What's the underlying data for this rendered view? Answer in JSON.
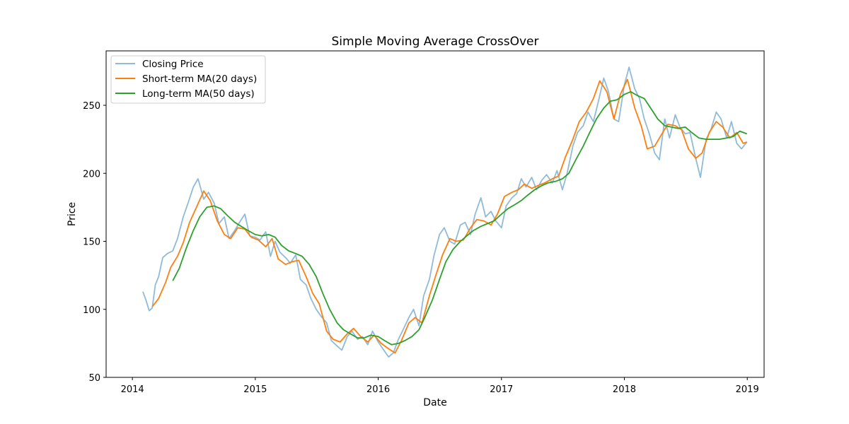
{
  "chart_data": {
    "type": "line",
    "title": "Simple Moving Average CrossOver",
    "xlabel": "Date",
    "ylabel": "Price",
    "xlim": [
      "2013-10-15",
      "2019-02-20"
    ],
    "ylim": [
      50,
      290
    ],
    "x_ticks": [
      "2014",
      "2015",
      "2016",
      "2017",
      "2018",
      "2019"
    ],
    "y_ticks": [
      50,
      100,
      150,
      200,
      250
    ],
    "grid": false,
    "legend_position": "upper left",
    "series": [
      {
        "name": "Closing Price",
        "color": "#1f77b4",
        "opacity": 0.5,
        "x": [
          "2014-02-01",
          "2014-02-10",
          "2014-02-20",
          "2014-03-01",
          "2014-03-10",
          "2014-03-20",
          "2014-04-01",
          "2014-04-15",
          "2014-05-01",
          "2014-05-15",
          "2014-06-01",
          "2014-06-15",
          "2014-07-01",
          "2014-07-15",
          "2014-08-01",
          "2014-08-15",
          "2014-09-01",
          "2014-09-15",
          "2014-10-01",
          "2014-10-15",
          "2014-11-01",
          "2014-11-15",
          "2014-12-01",
          "2014-12-15",
          "2015-01-01",
          "2015-01-15",
          "2015-02-01",
          "2015-02-15",
          "2015-03-01",
          "2015-03-15",
          "2015-04-01",
          "2015-04-15",
          "2015-05-01",
          "2015-05-15",
          "2015-06-01",
          "2015-06-15",
          "2015-07-01",
          "2015-07-15",
          "2015-08-01",
          "2015-08-15",
          "2015-09-01",
          "2015-09-15",
          "2015-10-01",
          "2015-10-15",
          "2015-11-01",
          "2015-11-15",
          "2015-12-01",
          "2015-12-15",
          "2016-01-01",
          "2016-01-15",
          "2016-02-01",
          "2016-02-15",
          "2016-03-01",
          "2016-03-15",
          "2016-04-01",
          "2016-04-15",
          "2016-05-01",
          "2016-05-15",
          "2016-06-01",
          "2016-06-15",
          "2016-07-01",
          "2016-07-15",
          "2016-08-01",
          "2016-08-15",
          "2016-09-01",
          "2016-09-15",
          "2016-10-01",
          "2016-10-15",
          "2016-11-01",
          "2016-11-15",
          "2016-12-01",
          "2016-12-15",
          "2017-01-01",
          "2017-01-15",
          "2017-02-01",
          "2017-02-15",
          "2017-03-01",
          "2017-03-15",
          "2017-04-01",
          "2017-04-15",
          "2017-05-01",
          "2017-05-15",
          "2017-06-01",
          "2017-06-15",
          "2017-07-01",
          "2017-07-15",
          "2017-08-01",
          "2017-08-15",
          "2017-09-01",
          "2017-09-15",
          "2017-10-01",
          "2017-10-15",
          "2017-11-01",
          "2017-11-15",
          "2017-12-01",
          "2017-12-15",
          "2018-01-01",
          "2018-01-15",
          "2018-02-01",
          "2018-02-15",
          "2018-03-01",
          "2018-03-15",
          "2018-04-01",
          "2018-04-15",
          "2018-05-01",
          "2018-05-15",
          "2018-06-01",
          "2018-06-15",
          "2018-07-01",
          "2018-07-15",
          "2018-08-01",
          "2018-08-15",
          "2018-09-01",
          "2018-09-15",
          "2018-10-01",
          "2018-10-15",
          "2018-11-01",
          "2018-11-15",
          "2018-12-01",
          "2018-12-15",
          "2018-12-31"
        ],
        "y": [
          113,
          107,
          99,
          101,
          118,
          124,
          138,
          141,
          143,
          152,
          168,
          178,
          190,
          196,
          181,
          186,
          178,
          163,
          168,
          152,
          158,
          164,
          170,
          154,
          153,
          151,
          157,
          139,
          150,
          142,
          138,
          134,
          140,
          122,
          118,
          108,
          100,
          95,
          90,
          77,
          73,
          70,
          80,
          84,
          78,
          80,
          74,
          84,
          76,
          71,
          65,
          68,
          78,
          85,
          94,
          100,
          88,
          110,
          122,
          140,
          155,
          160,
          150,
          148,
          162,
          164,
          155,
          170,
          182,
          168,
          172,
          165,
          160,
          176,
          182,
          185,
          196,
          190,
          197,
          188,
          195,
          199,
          193,
          202,
          188,
          200,
          220,
          230,
          235,
          245,
          238,
          252,
          270,
          260,
          240,
          238,
          265,
          278,
          262,
          255,
          240,
          230,
          215,
          210,
          240,
          226,
          243,
          234,
          229,
          230,
          211,
          197,
          225,
          232,
          245,
          240,
          226,
          238,
          222,
          218,
          223
        ]
      },
      {
        "name": "Short-term MA(20 days)",
        "color": "#ff7f0e",
        "x": [
          "2014-03-01",
          "2014-03-20",
          "2014-04-10",
          "2014-04-25",
          "2014-05-15",
          "2014-06-01",
          "2014-06-20",
          "2014-07-10",
          "2014-08-01",
          "2014-08-20",
          "2014-09-10",
          "2014-10-01",
          "2014-10-20",
          "2014-11-10",
          "2014-12-01",
          "2014-12-20",
          "2015-01-10",
          "2015-02-01",
          "2015-02-20",
          "2015-03-10",
          "2015-04-01",
          "2015-04-20",
          "2015-05-10",
          "2015-06-01",
          "2015-06-20",
          "2015-07-10",
          "2015-08-01",
          "2015-08-20",
          "2015-09-10",
          "2015-10-01",
          "2015-10-20",
          "2015-11-10",
          "2015-12-01",
          "2015-12-20",
          "2016-01-10",
          "2016-02-01",
          "2016-02-20",
          "2016-03-10",
          "2016-04-01",
          "2016-04-20",
          "2016-05-10",
          "2016-06-01",
          "2016-06-20",
          "2016-07-10",
          "2016-08-01",
          "2016-08-20",
          "2016-09-10",
          "2016-10-01",
          "2016-10-20",
          "2016-11-10",
          "2016-12-01",
          "2016-12-20",
          "2017-01-10",
          "2017-02-01",
          "2017-02-20",
          "2017-03-10",
          "2017-04-01",
          "2017-04-20",
          "2017-05-10",
          "2017-06-01",
          "2017-06-20",
          "2017-07-10",
          "2017-08-01",
          "2017-08-20",
          "2017-09-10",
          "2017-10-01",
          "2017-10-20",
          "2017-11-10",
          "2017-12-01",
          "2017-12-20",
          "2018-01-10",
          "2018-02-01",
          "2018-02-20",
          "2018-03-10",
          "2018-04-01",
          "2018-04-20",
          "2018-05-10",
          "2018-06-01",
          "2018-06-20",
          "2018-07-10",
          "2018-08-01",
          "2018-08-20",
          "2018-09-10",
          "2018-10-01",
          "2018-10-20",
          "2018-11-10",
          "2018-12-01",
          "2018-12-20",
          "2018-12-31"
        ],
        "y": [
          102,
          108,
          120,
          131,
          139,
          149,
          164,
          175,
          187,
          180,
          165,
          155,
          152,
          160,
          159,
          153,
          151,
          146,
          152,
          137,
          133,
          135,
          136,
          124,
          112,
          104,
          84,
          78,
          76,
          82,
          86,
          80,
          76,
          81,
          75,
          71,
          68,
          77,
          90,
          94,
          90,
          110,
          125,
          140,
          152,
          150,
          151,
          160,
          166,
          165,
          162,
          170,
          183,
          186,
          188,
          192,
          189,
          191,
          193,
          196,
          198,
          212,
          225,
          238,
          245,
          255,
          268,
          260,
          240,
          258,
          269,
          248,
          235,
          218,
          220,
          228,
          236,
          235,
          232,
          218,
          211,
          215,
          230,
          238,
          234,
          226,
          230,
          222,
          223
        ]
      },
      {
        "name": "Long-term MA(50 days)",
        "color": "#2ca02c",
        "x": [
          "2014-05-01",
          "2014-05-20",
          "2014-06-10",
          "2014-07-01",
          "2014-07-20",
          "2014-08-10",
          "2014-09-01",
          "2014-09-20",
          "2014-10-10",
          "2014-11-01",
          "2014-11-20",
          "2014-12-10",
          "2015-01-01",
          "2015-01-20",
          "2015-02-10",
          "2015-03-01",
          "2015-03-20",
          "2015-04-10",
          "2015-05-01",
          "2015-05-20",
          "2015-06-10",
          "2015-07-01",
          "2015-07-20",
          "2015-08-10",
          "2015-09-01",
          "2015-09-20",
          "2015-10-10",
          "2015-11-01",
          "2015-11-20",
          "2015-12-10",
          "2016-01-01",
          "2016-01-20",
          "2016-02-10",
          "2016-03-01",
          "2016-03-20",
          "2016-04-10",
          "2016-05-01",
          "2016-05-20",
          "2016-06-10",
          "2016-07-01",
          "2016-07-20",
          "2016-08-10",
          "2016-09-01",
          "2016-09-20",
          "2016-10-10",
          "2016-11-01",
          "2016-11-20",
          "2016-12-10",
          "2017-01-01",
          "2017-01-20",
          "2017-02-10",
          "2017-03-01",
          "2017-03-20",
          "2017-04-10",
          "2017-05-01",
          "2017-05-20",
          "2017-06-10",
          "2017-07-01",
          "2017-07-20",
          "2017-08-10",
          "2017-09-01",
          "2017-09-20",
          "2017-10-10",
          "2017-11-01",
          "2017-11-20",
          "2017-12-10",
          "2018-01-01",
          "2018-01-20",
          "2018-02-10",
          "2018-03-01",
          "2018-03-20",
          "2018-04-10",
          "2018-05-01",
          "2018-05-20",
          "2018-06-10",
          "2018-07-01",
          "2018-07-20",
          "2018-08-10",
          "2018-09-01",
          "2018-09-20",
          "2018-10-10",
          "2018-11-01",
          "2018-11-20",
          "2018-12-10",
          "2018-12-31"
        ],
        "y": [
          121,
          130,
          145,
          158,
          168,
          175,
          176,
          174,
          169,
          164,
          161,
          158,
          155,
          154,
          155,
          153,
          147,
          143,
          141,
          139,
          133,
          124,
          112,
          100,
          90,
          85,
          82,
          79,
          79,
          81,
          80,
          77,
          74,
          75,
          77,
          80,
          85,
          95,
          107,
          122,
          135,
          144,
          150,
          154,
          158,
          161,
          163,
          165,
          170,
          174,
          177,
          180,
          184,
          188,
          191,
          193,
          194,
          196,
          200,
          210,
          220,
          230,
          240,
          248,
          253,
          254,
          258,
          260,
          257,
          255,
          248,
          240,
          235,
          234,
          233,
          234,
          230,
          226,
          225,
          225,
          225,
          226,
          227,
          231,
          229
        ]
      }
    ]
  }
}
